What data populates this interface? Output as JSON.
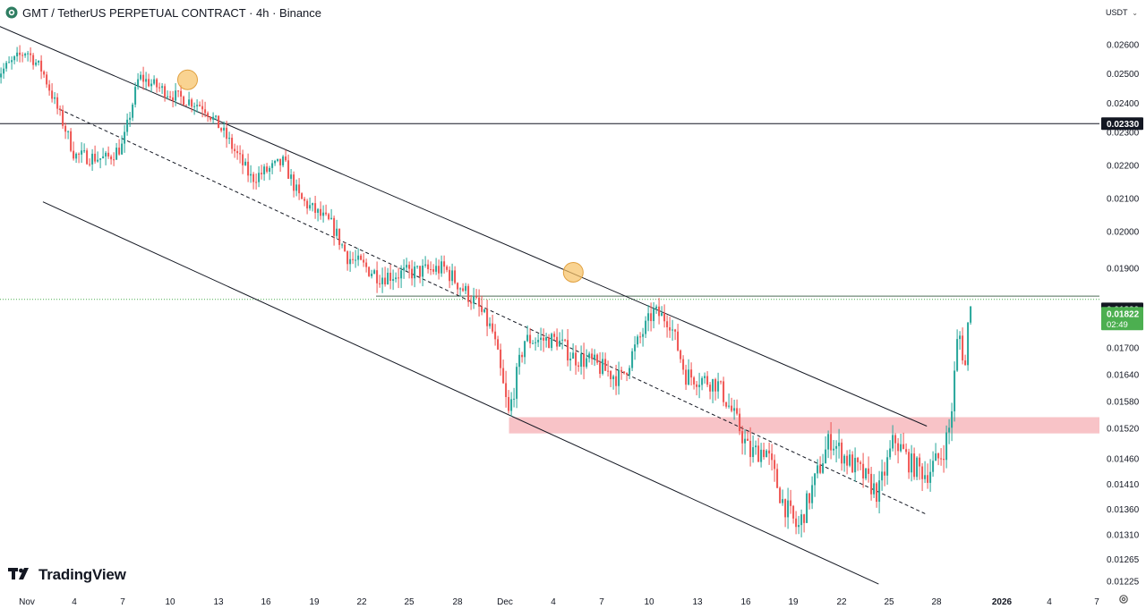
{
  "header": {
    "symbol_title": "GMT / TetherUS PERPETUAL CONTRACT · 4h · Binance",
    "currency": "USDT"
  },
  "branding": {
    "logo_text": "TradingView"
  },
  "icons": {
    "symbol": "binance-gmt-icon",
    "logo": "tradingview-logo-icon",
    "currency_dropdown": "chevron-down-icon",
    "settings": "gear-icon"
  },
  "colors": {
    "up": "#26a69a",
    "down": "#ef5350",
    "zone": "#f7b9bd",
    "marker": "#f7c063",
    "price_current": "#4caf50",
    "line": "#131722"
  },
  "chart_data": {
    "type": "candlestick",
    "x_axis_labels": [
      "Nov",
      "4",
      "7",
      "10",
      "13",
      "16",
      "19",
      "22",
      "25",
      "28",
      "Dec",
      "4",
      "7",
      "10",
      "13",
      "16",
      "19",
      "22",
      "25",
      "28",
      "2026",
      "4",
      "7"
    ],
    "y_axis_labels": [
      "0.02600",
      "0.02500",
      "0.02400",
      "0.02300",
      "0.02200",
      "0.02100",
      "0.02000",
      "0.01900",
      "0.01700",
      "0.01640",
      "0.01580",
      "0.01520",
      "0.01460",
      "0.01410",
      "0.01360",
      "0.01310",
      "0.01265",
      "0.01225"
    ],
    "resistance_level": {
      "label": "0.02330",
      "value": 0.0233
    },
    "breakout_level": {
      "label": "0.01830",
      "value": 0.0183
    },
    "current_price": {
      "label": "0.01822",
      "countdown": "02:49",
      "value": 0.01822
    },
    "demand_zone": {
      "from_date": "Dec 1",
      "low": 0.0151,
      "high": 0.01545
    },
    "price_path": [
      {
        "d": "Oct 30",
        "p": 0.0249
      },
      {
        "d": "Nov 1",
        "p": 0.0258
      },
      {
        "d": "Nov 2",
        "p": 0.0251
      },
      {
        "d": "Nov 4",
        "p": 0.0223
      },
      {
        "d": "Nov 6",
        "p": 0.0222
      },
      {
        "d": "Nov 7",
        "p": 0.0226
      },
      {
        "d": "Nov 8",
        "p": 0.0249
      },
      {
        "d": "Nov 10",
        "p": 0.0243
      },
      {
        "d": "Nov 12",
        "p": 0.0239
      },
      {
        "d": "Nov 13",
        "p": 0.0232
      },
      {
        "d": "Nov 15",
        "p": 0.0216
      },
      {
        "d": "Nov 17",
        "p": 0.0221
      },
      {
        "d": "Nov 18",
        "p": 0.021
      },
      {
        "d": "Nov 20",
        "p": 0.0202
      },
      {
        "d": "Nov 21",
        "p": 0.0193
      },
      {
        "d": "Nov 23",
        "p": 0.0188
      },
      {
        "d": "Nov 25",
        "p": 0.0189
      },
      {
        "d": "Nov 27",
        "p": 0.019
      },
      {
        "d": "Nov 29",
        "p": 0.0181
      },
      {
        "d": "Nov 30",
        "p": 0.0174
      },
      {
        "d": "Dec 1",
        "p": 0.0155
      },
      {
        "d": "Dec 2",
        "p": 0.0172
      },
      {
        "d": "Dec 4",
        "p": 0.0172
      },
      {
        "d": "Dec 5",
        "p": 0.0168
      },
      {
        "d": "Dec 6",
        "p": 0.0167
      },
      {
        "d": "Dec 8",
        "p": 0.0163
      },
      {
        "d": "Dec 10",
        "p": 0.0179
      },
      {
        "d": "Dec 11",
        "p": 0.0177
      },
      {
        "d": "Dec 12",
        "p": 0.0164
      },
      {
        "d": "Dec 14",
        "p": 0.0162
      },
      {
        "d": "Dec 15",
        "p": 0.0155
      },
      {
        "d": "Dec 16",
        "p": 0.0147
      },
      {
        "d": "Dec 17",
        "p": 0.0148
      },
      {
        "d": "Dec 18",
        "p": 0.0138
      },
      {
        "d": "Dec 19",
        "p": 0.0132
      },
      {
        "d": "Dec 20",
        "p": 0.0141
      },
      {
        "d": "Dec 21",
        "p": 0.015
      },
      {
        "d": "Dec 22",
        "p": 0.0146
      },
      {
        "d": "Dec 23",
        "p": 0.0143
      },
      {
        "d": "Dec 24",
        "p": 0.0139
      },
      {
        "d": "Dec 25",
        "p": 0.015
      },
      {
        "d": "Dec 26",
        "p": 0.0145
      },
      {
        "d": "Dec 27",
        "p": 0.0143
      },
      {
        "d": "Dec 28",
        "p": 0.0147
      },
      {
        "d": "Dec 28.5",
        "p": 0.0153
      },
      {
        "d": "Dec 29",
        "p": 0.0175
      },
      {
        "d": "Dec 29.4",
        "p": 0.0165
      },
      {
        "d": "Dec 29.7",
        "p": 0.01822
      }
    ],
    "channel": {
      "upper": [
        {
          "d": "Oct 30",
          "p": 0.0267
        },
        {
          "d": "Dec 27",
          "p": 0.01525
        }
      ],
      "middle": [
        {
          "d": "Nov 3",
          "p": 0.0238
        },
        {
          "d": "Dec 27",
          "p": 0.0135
        }
      ],
      "lower": [
        {
          "d": "Nov 2",
          "p": 0.0209
        },
        {
          "d": "Dec 24",
          "p": 0.0122
        }
      ]
    },
    "touch_markers": [
      {
        "d": "Nov 11",
        "p": 0.0248
      },
      {
        "d": "Dec 5",
        "p": 0.0189
      }
    ],
    "grid": false
  }
}
